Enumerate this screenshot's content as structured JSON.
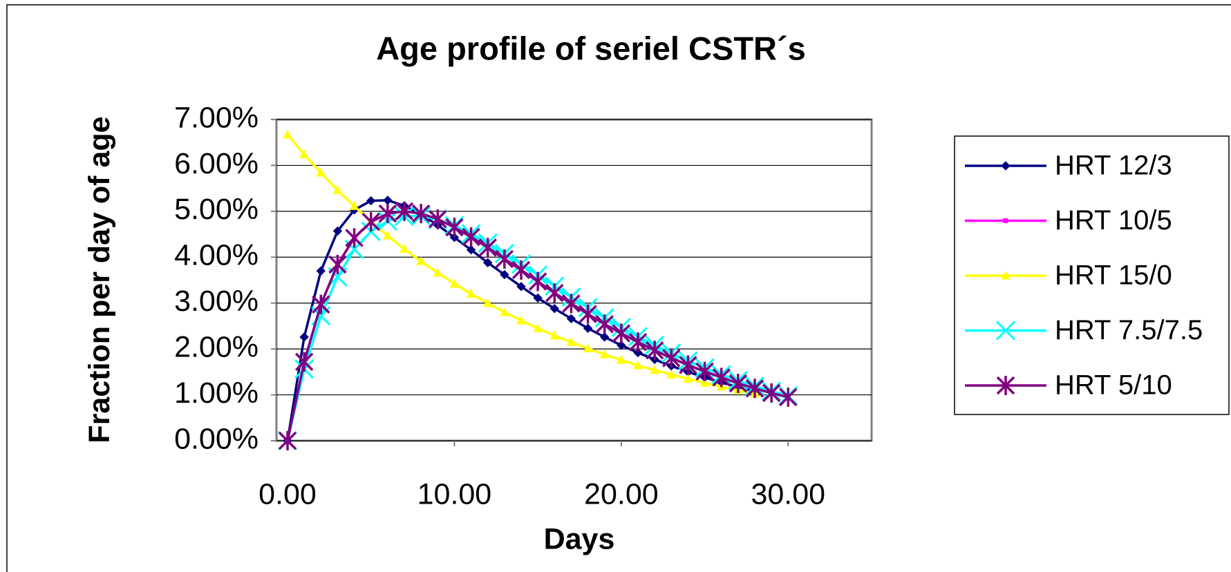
{
  "chart_data": {
    "type": "line",
    "title": "Age profile of seriel CSTR´s",
    "x_label": "Days",
    "y_label": "Fraction per day of age",
    "x": [
      0,
      1,
      2,
      3,
      4,
      5,
      6,
      7,
      8,
      9,
      10,
      11,
      12,
      13,
      14,
      15,
      16,
      17,
      18,
      19,
      20,
      21,
      22,
      23,
      24,
      25,
      26,
      27,
      28,
      29,
      30
    ],
    "series": [
      {
        "name": "HRT 12/3",
        "color": "#000080",
        "marker": "diamond",
        "values": [
          0,
          2.26,
          3.7,
          4.57,
          5.03,
          5.23,
          5.24,
          5.12,
          4.93,
          4.7,
          4.43,
          4.16,
          3.88,
          3.62,
          3.36,
          3.11,
          2.88,
          2.66,
          2.45,
          2.26,
          2.08,
          1.92,
          1.77,
          1.63,
          1.5,
          1.38,
          1.27,
          1.17,
          1.08,
          null,
          null
        ]
      },
      {
        "name": "HRT 10/5",
        "color": "#ff00ff",
        "marker": "square",
        "values": [
          0,
          1.72,
          2.97,
          3.84,
          4.42,
          4.77,
          4.95,
          5.0,
          4.95,
          4.83,
          4.65,
          4.44,
          4.21,
          3.96,
          3.72,
          3.47,
          3.22,
          2.99,
          2.76,
          2.54,
          2.34,
          2.15,
          1.97,
          1.8,
          1.65,
          1.51,
          1.38,
          1.25,
          1.14,
          1.04,
          0.95
        ]
      },
      {
        "name": "HRT 15/0",
        "color": "#ffff00",
        "marker": "triangle",
        "values": [
          6.67,
          6.24,
          5.84,
          5.46,
          5.11,
          4.78,
          4.47,
          4.18,
          3.91,
          3.66,
          3.42,
          3.2,
          3.0,
          2.8,
          2.62,
          2.45,
          2.29,
          2.15,
          2.01,
          1.88,
          1.76,
          1.64,
          1.54,
          1.44,
          1.35,
          1.26,
          1.18,
          1.1,
          1.03,
          null,
          null
        ]
      },
      {
        "name": "HRT 7.5/7.5",
        "color": "#00ffff",
        "marker": "x",
        "values": [
          0,
          1.56,
          2.72,
          3.57,
          4.17,
          4.56,
          4.79,
          4.89,
          4.9,
          4.82,
          4.69,
          4.51,
          4.31,
          4.08,
          3.85,
          3.61,
          3.37,
          3.13,
          2.9,
          2.68,
          2.47,
          2.27,
          2.08,
          1.91,
          1.74,
          1.59,
          1.44,
          1.31,
          1.19,
          1.08,
          0.98
        ]
      },
      {
        "name": "HRT 5/10",
        "color": "#800080",
        "marker": "star",
        "values": [
          0,
          1.72,
          2.97,
          3.84,
          4.42,
          4.77,
          4.95,
          5.0,
          4.95,
          4.83,
          4.65,
          4.44,
          4.21,
          3.96,
          3.72,
          3.47,
          3.22,
          2.99,
          2.76,
          2.54,
          2.34,
          2.15,
          1.97,
          1.8,
          1.65,
          1.51,
          1.38,
          1.25,
          1.14,
          1.04,
          0.95
        ]
      }
    ],
    "xlim": [
      0,
      35
    ],
    "xticks": [
      {
        "value": 0,
        "label": "0.00"
      },
      {
        "value": 10,
        "label": "10.00"
      },
      {
        "value": 20,
        "label": "20.00"
      },
      {
        "value": 30,
        "label": "30.00"
      }
    ],
    "ylim": [
      0,
      7
    ],
    "yticks": [
      {
        "value": 0,
        "label": "0.00%"
      },
      {
        "value": 1,
        "label": "1.00%"
      },
      {
        "value": 2,
        "label": "2.00%"
      },
      {
        "value": 3,
        "label": "3.00%"
      },
      {
        "value": 4,
        "label": "4.00%"
      },
      {
        "value": 5,
        "label": "5.00%"
      },
      {
        "value": 6,
        "label": "6.00%"
      },
      {
        "value": 7,
        "label": "7.00%"
      }
    ],
    "grid": true,
    "legend": "right"
  }
}
